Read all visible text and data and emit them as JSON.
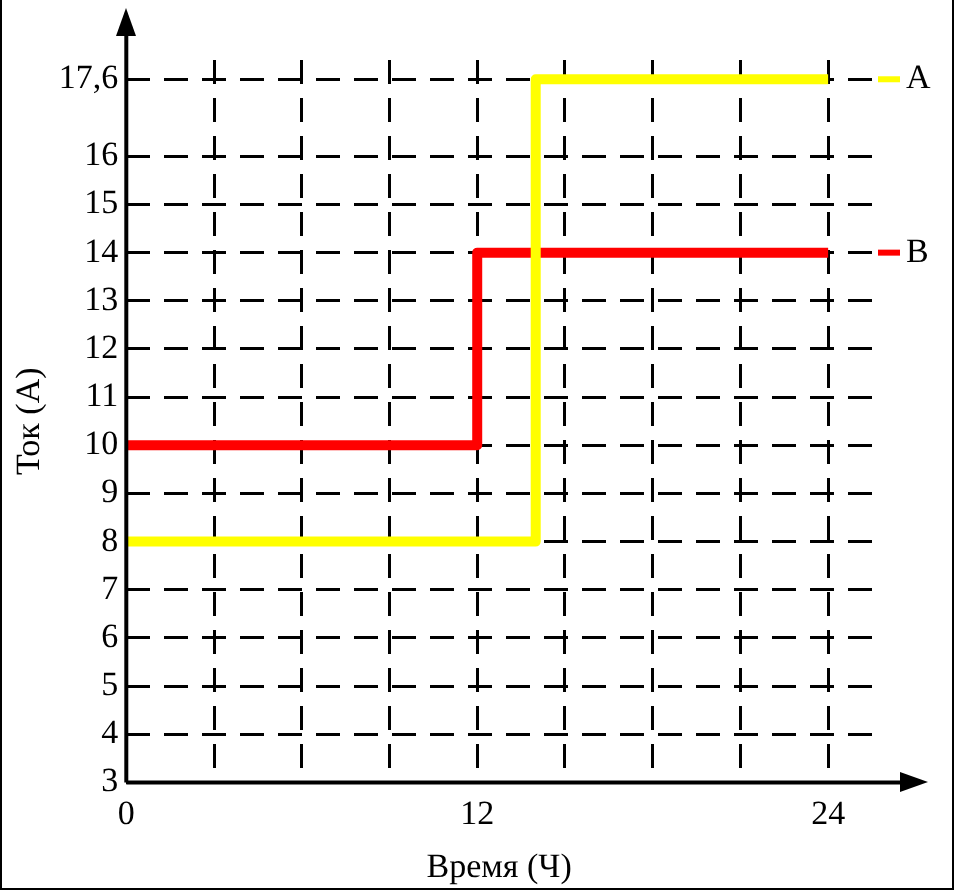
{
  "chart_data": {
    "type": "step",
    "xlabel": "Время (Ч)",
    "ylabel": "Ток (А)",
    "series": [
      {
        "name": "A",
        "color": "#ffff00",
        "x": [
          0,
          14,
          24
        ],
        "values": [
          8,
          17.6,
          17.6
        ]
      },
      {
        "name": "B",
        "color": "#ff0000",
        "x": [
          0,
          12,
          24
        ],
        "values": [
          10,
          14,
          14
        ]
      }
    ],
    "xlim": [
      0,
      25.5
    ],
    "xticks": [
      0,
      {
        "value": 3,
        "label": null
      },
      {
        "value": 6,
        "label": null
      },
      {
        "value": 9,
        "label": null
      },
      12,
      {
        "value": 15,
        "label": null
      },
      {
        "value": 18,
        "label": null
      },
      {
        "value": 21,
        "label": null
      },
      24
    ],
    "ylim": [
      3,
      18
    ],
    "yticks": [
      3,
      4,
      5,
      6,
      7,
      8,
      9,
      10,
      11,
      12,
      13,
      14,
      15,
      16,
      {
        "value": 17.6,
        "label": "17,6"
      }
    ],
    "grid": true,
    "legend": "right",
    "line_style": "solid",
    "marker": "none"
  }
}
